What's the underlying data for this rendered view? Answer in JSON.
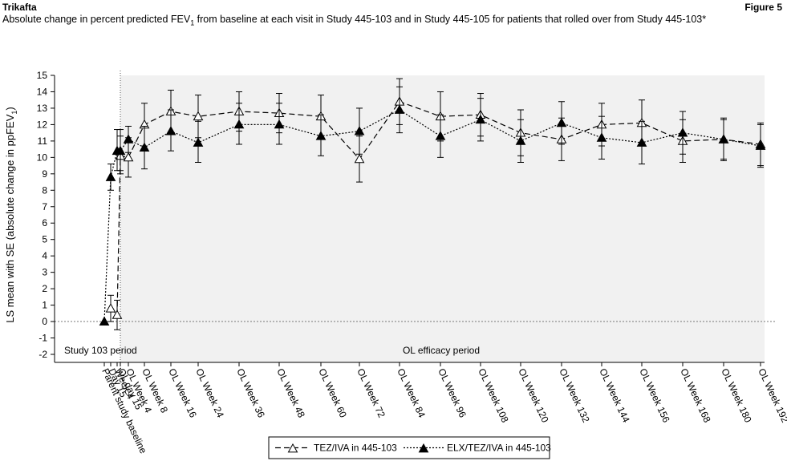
{
  "header": {
    "title": "Trikafta",
    "figure_label": "Figure 5",
    "subtitle_pre": "Absolute change in percent predicted FEV",
    "subtitle_sub": "1",
    "subtitle_post": " from baseline at each visit in Study 445-103 and in Study 445-105 for patients that rolled over from Study 445-103*"
  },
  "chart_data": {
    "type": "line",
    "title": "",
    "ylabel_pre": "LS mean with SE (absolute change in ppFEV",
    "ylabel_sub": "1",
    "ylabel_post": ")",
    "xlabel": "",
    "ylim": [
      -2,
      15
    ],
    "yticks": [
      -2,
      -1,
      0,
      1,
      2,
      3,
      4,
      5,
      6,
      7,
      8,
      9,
      10,
      11,
      12,
      13,
      14,
      15
    ],
    "period_labels": [
      "Study 103 period",
      "OL efficacy period"
    ],
    "categories": [
      "Parent study baseline",
      "Day 15",
      "Week 4",
      "OL day 15",
      "OL Week 4",
      "OL Week 8",
      "OL Week 16",
      "OL Week 24",
      "OL Week 36",
      "OL Week 48",
      "OL Week 60",
      "OL Week 72",
      "OL Week 84",
      "OL Week 96",
      "OL Week 108",
      "OL Week 120",
      "OL Week 132",
      "OL Week 144",
      "OL Week 156",
      "OL Week 168",
      "OL Week 180",
      "OL Week 192"
    ],
    "series": [
      {
        "name": "TEZ/IVA in 445-103",
        "color": "#000000",
        "marker": "open-triangle",
        "dash": "dashed",
        "values": [
          null,
          0.8,
          0.4,
          10.1,
          10.0,
          12.0,
          12.8,
          12.5,
          12.8,
          12.7,
          12.5,
          9.9,
          13.4,
          12.5,
          12.6,
          11.5,
          11.1,
          12.0,
          12.1,
          11.0,
          11.1,
          10.8
        ],
        "se_low": [
          null,
          0.0,
          -0.5,
          9.0,
          8.8,
          10.7,
          11.5,
          11.2,
          11.6,
          11.5,
          11.2,
          8.5,
          12.0,
          11.0,
          11.3,
          10.1,
          9.8,
          10.7,
          10.8,
          9.7,
          9.8,
          9.5
        ],
        "se_high": [
          null,
          1.6,
          1.3,
          11.3,
          11.2,
          13.3,
          14.1,
          13.8,
          14.0,
          13.9,
          13.8,
          11.3,
          14.8,
          14.0,
          13.9,
          12.9,
          12.4,
          13.3,
          13.5,
          12.3,
          12.4,
          12.1
        ]
      },
      {
        "name": "ELX/TEZ/IVA in 445-103",
        "color": "#000000",
        "marker": "filled-triangle",
        "dash": "dotted",
        "values": [
          0.0,
          8.8,
          10.4,
          10.4,
          11.1,
          10.6,
          11.6,
          10.9,
          12.0,
          12.0,
          11.3,
          11.6,
          12.9,
          11.3,
          12.3,
          11.0,
          12.1,
          11.2,
          10.9,
          11.5,
          11.1,
          10.7
        ],
        "se_low": [
          null,
          8.0,
          9.2,
          9.2,
          10.3,
          9.3,
          10.4,
          9.7,
          10.8,
          10.8,
          10.1,
          10.2,
          11.5,
          10.0,
          11.0,
          9.7,
          10.8,
          9.9,
          9.6,
          10.2,
          9.9,
          9.4
        ],
        "se_high": [
          null,
          9.6,
          11.7,
          11.7,
          11.9,
          11.9,
          12.9,
          12.2,
          13.3,
          13.3,
          12.6,
          13.0,
          14.3,
          12.6,
          13.6,
          12.3,
          13.4,
          12.5,
          12.2,
          12.8,
          12.3,
          12.0
        ]
      }
    ],
    "legend_position": "bottom-center",
    "grid": false,
    "reference_line_y": 0
  }
}
